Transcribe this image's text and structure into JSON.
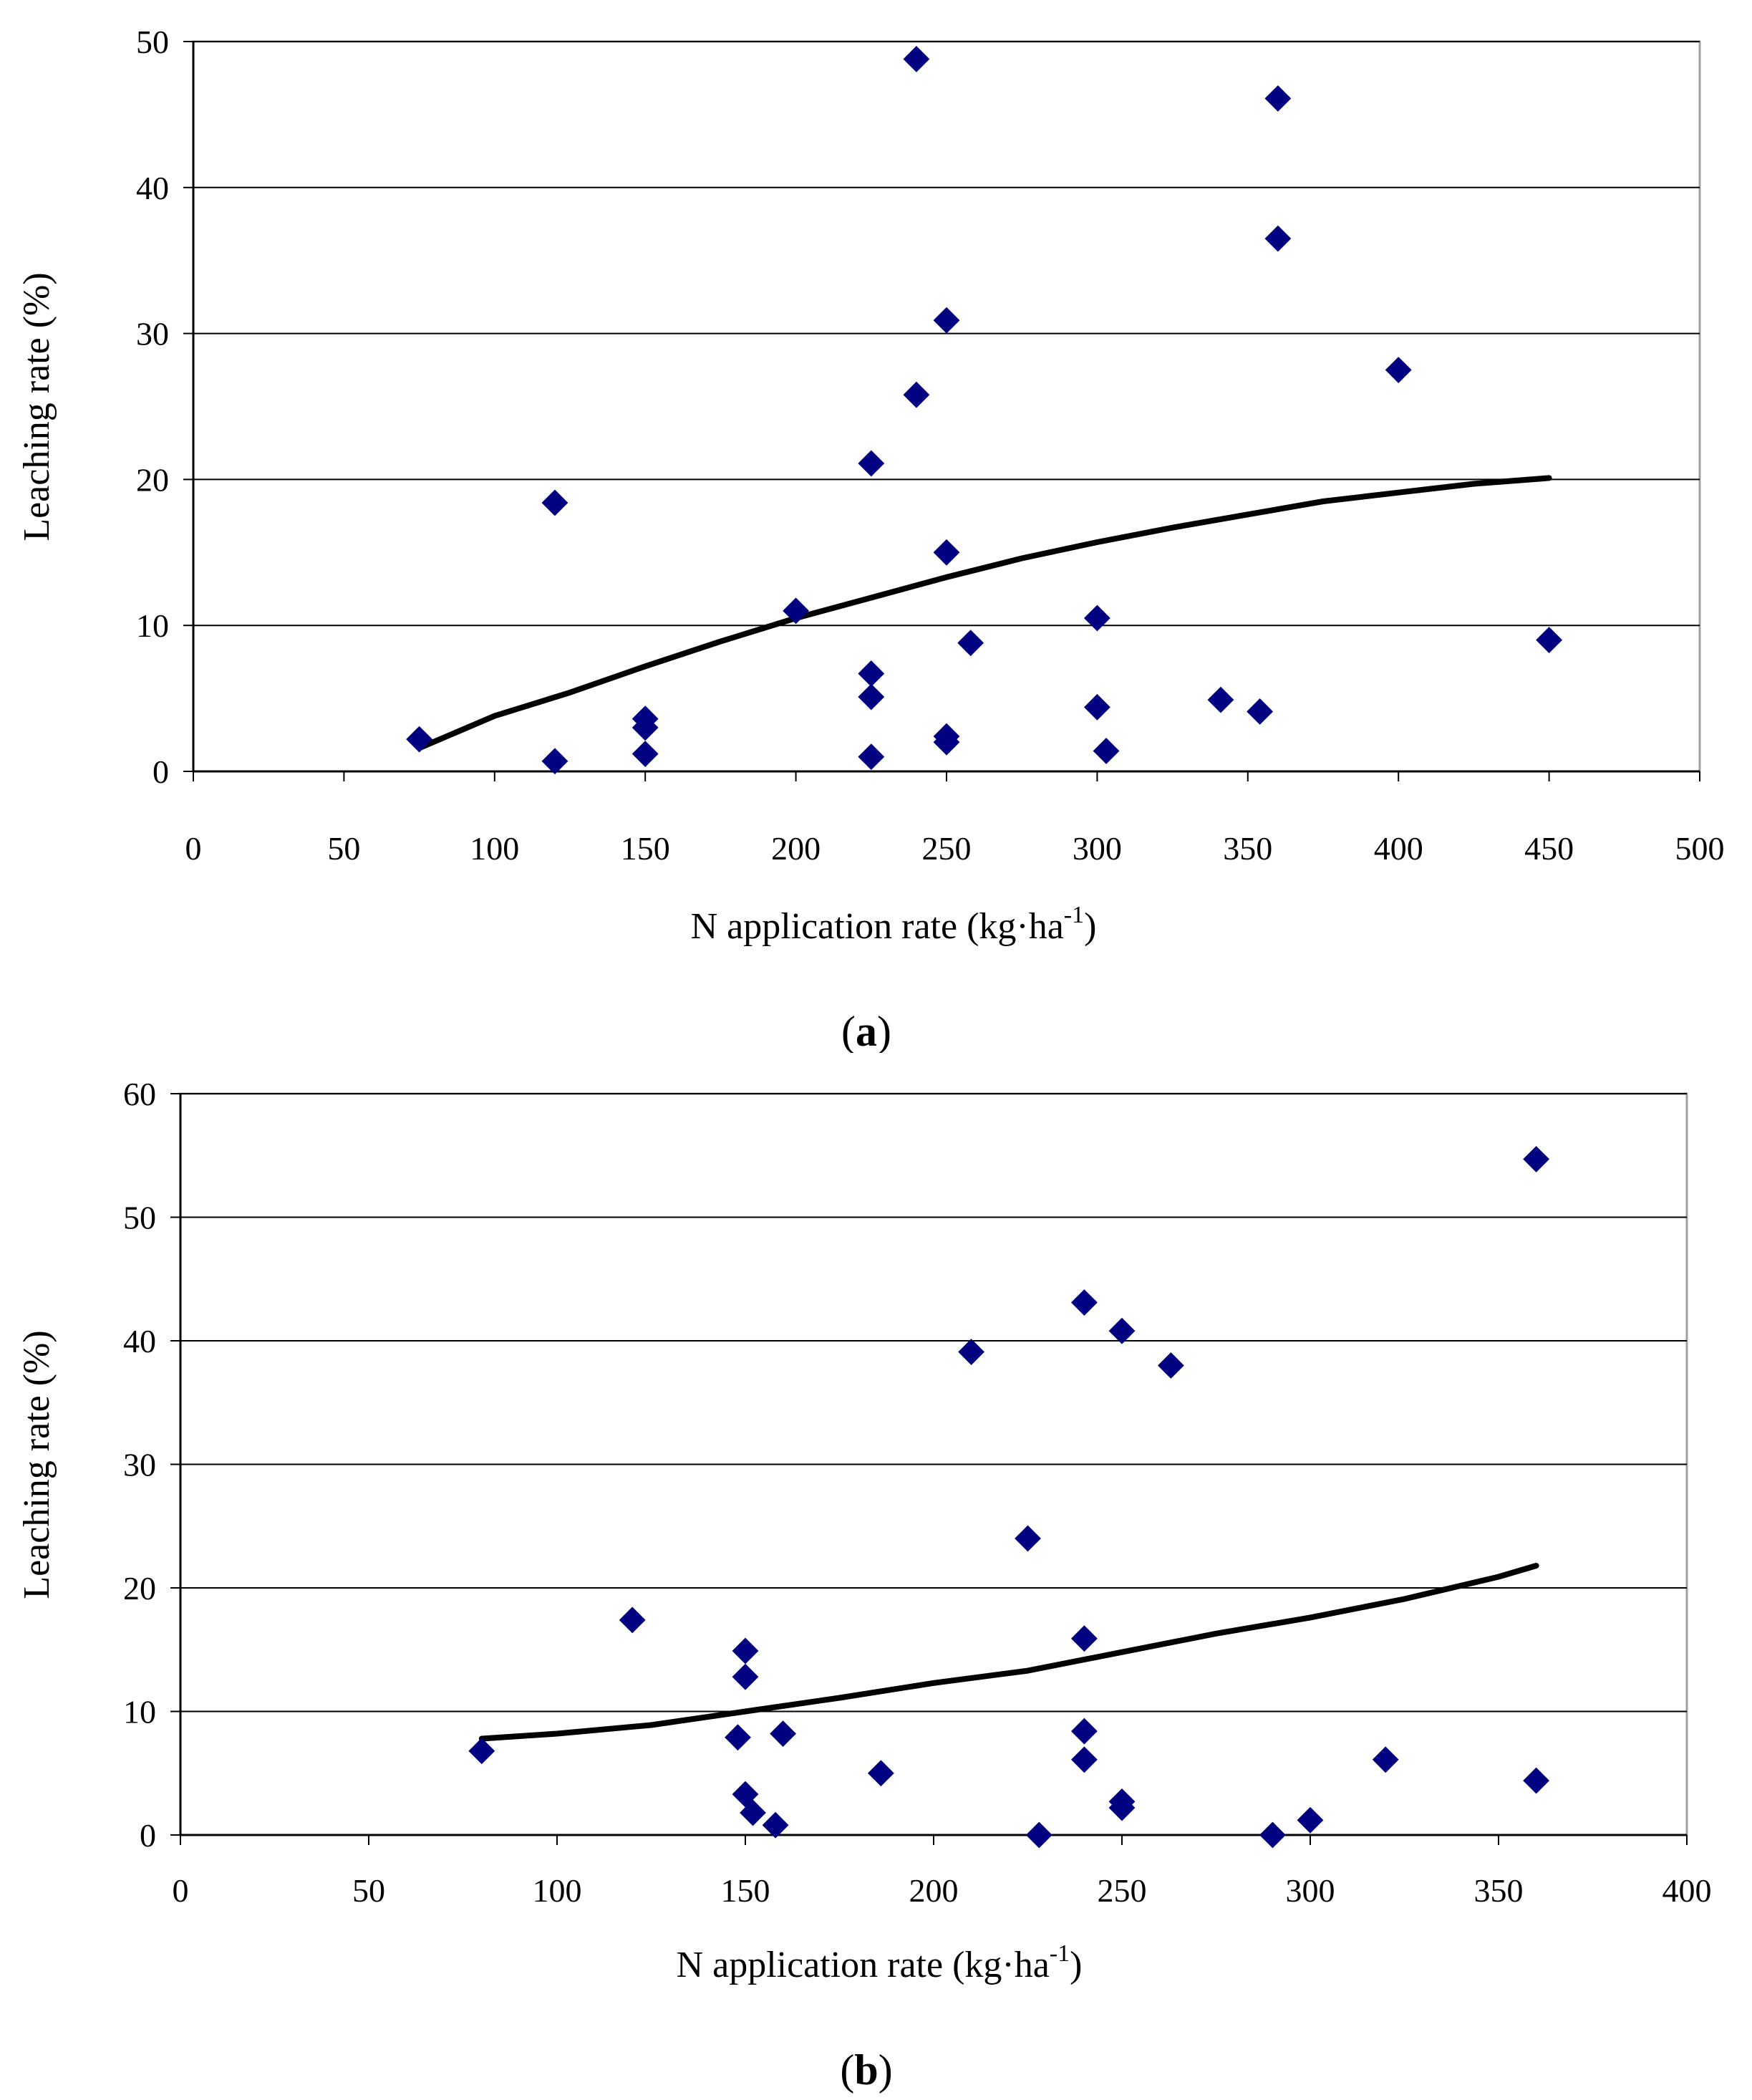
{
  "chart_data": [
    {
      "type": "scatter",
      "panel_label": "a",
      "xlabel_main": "N application rate (kg·ha",
      "xlabel_sup": "-1",
      "xlabel_end": ")",
      "ylabel": "Leaching rate (%)",
      "xlim": [
        0,
        500
      ],
      "ylim": [
        0,
        50
      ],
      "xticks": [
        0,
        50,
        100,
        150,
        200,
        250,
        300,
        350,
        400,
        450,
        500
      ],
      "yticks": [
        0,
        10,
        20,
        30,
        40,
        50
      ],
      "grid": "horizontal",
      "marker_color": "#000080",
      "trend_color": "#000000",
      "points": [
        [
          75,
          2.2
        ],
        [
          120,
          18.4
        ],
        [
          120,
          0.7
        ],
        [
          150,
          3.6
        ],
        [
          150,
          3.0
        ],
        [
          150,
          1.2
        ],
        [
          200,
          11.0
        ],
        [
          225,
          21.1
        ],
        [
          225,
          6.7
        ],
        [
          225,
          5.1
        ],
        [
          225,
          1.0
        ],
        [
          240,
          48.8
        ],
        [
          240,
          25.8
        ],
        [
          250,
          30.9
        ],
        [
          250,
          15.0
        ],
        [
          250,
          2.4
        ],
        [
          250,
          2.0
        ],
        [
          258,
          8.8
        ],
        [
          300,
          10.5
        ],
        [
          300,
          4.4
        ],
        [
          303,
          1.4
        ],
        [
          341,
          4.9
        ],
        [
          354,
          4.1
        ],
        [
          360,
          46.1
        ],
        [
          360,
          36.5
        ],
        [
          400,
          27.5
        ],
        [
          450,
          9.0
        ]
      ],
      "trendline": [
        [
          75,
          1.6
        ],
        [
          100,
          3.8
        ],
        [
          125,
          5.4
        ],
        [
          150,
          7.2
        ],
        [
          175,
          8.9
        ],
        [
          200,
          10.5
        ],
        [
          225,
          11.9
        ],
        [
          250,
          13.3
        ],
        [
          275,
          14.6
        ],
        [
          300,
          15.7
        ],
        [
          325,
          16.7
        ],
        [
          350,
          17.6
        ],
        [
          375,
          18.5
        ],
        [
          400,
          19.1
        ],
        [
          425,
          19.7
        ],
        [
          450,
          20.1
        ]
      ]
    },
    {
      "type": "scatter",
      "panel_label": "b",
      "xlabel_main": "N application rate (kg·ha",
      "xlabel_sup": "-1",
      "xlabel_end": ")",
      "ylabel": "Leaching rate (%)",
      "xlim": [
        0,
        400
      ],
      "ylim": [
        0,
        60
      ],
      "xticks": [
        0,
        50,
        100,
        150,
        200,
        250,
        300,
        350,
        400
      ],
      "yticks": [
        0,
        10,
        20,
        30,
        40,
        50,
        60
      ],
      "grid": "horizontal",
      "marker_color": "#000080",
      "trend_color": "#000000",
      "points": [
        [
          80,
          6.8
        ],
        [
          120,
          17.4
        ],
        [
          148,
          7.9
        ],
        [
          150,
          14.9
        ],
        [
          150,
          12.8
        ],
        [
          150,
          3.3
        ],
        [
          152,
          1.8
        ],
        [
          158,
          0.8
        ],
        [
          160,
          8.2
        ],
        [
          186,
          5.0
        ],
        [
          210,
          39.1
        ],
        [
          225,
          24.0
        ],
        [
          228,
          0.0
        ],
        [
          240,
          43.1
        ],
        [
          240,
          15.9
        ],
        [
          240,
          8.4
        ],
        [
          240,
          6.1
        ],
        [
          250,
          40.8
        ],
        [
          250,
          2.7
        ],
        [
          250,
          2.2
        ],
        [
          263,
          38.0
        ],
        [
          290,
          0.0
        ],
        [
          300,
          1.2
        ],
        [
          320,
          6.1
        ],
        [
          360,
          54.7
        ],
        [
          360,
          4.4
        ]
      ],
      "trendline": [
        [
          80,
          7.8
        ],
        [
          100,
          8.2
        ],
        [
          125,
          8.9
        ],
        [
          150,
          10.0
        ],
        [
          175,
          11.1
        ],
        [
          200,
          12.3
        ],
        [
          225,
          13.3
        ],
        [
          250,
          14.8
        ],
        [
          275,
          16.3
        ],
        [
          300,
          17.6
        ],
        [
          325,
          19.1
        ],
        [
          350,
          20.9
        ],
        [
          360,
          21.8
        ]
      ]
    }
  ]
}
